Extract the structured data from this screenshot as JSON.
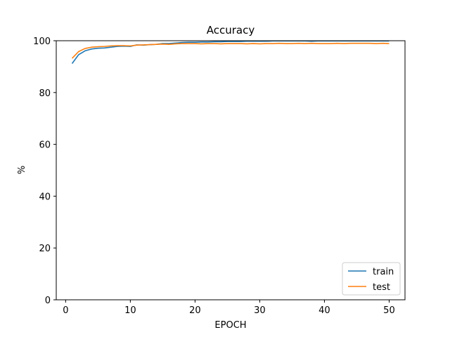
{
  "chart_data": {
    "type": "line",
    "title": "Accuracy",
    "xlabel": "EPOCH",
    "ylabel": "%",
    "xlim": [
      -1.45,
      52.45
    ],
    "ylim": [
      0,
      100
    ],
    "xticks": [
      0,
      10,
      20,
      30,
      40,
      50
    ],
    "yticks": [
      0,
      20,
      40,
      60,
      80,
      100
    ],
    "grid": false,
    "legend_position": "lower-right",
    "x": [
      1,
      2,
      3,
      4,
      5,
      6,
      7,
      8,
      9,
      10,
      11,
      12,
      13,
      14,
      15,
      16,
      17,
      18,
      19,
      20,
      21,
      22,
      23,
      24,
      25,
      26,
      27,
      28,
      29,
      30,
      31,
      32,
      33,
      34,
      35,
      36,
      37,
      38,
      39,
      40,
      41,
      42,
      43,
      44,
      45,
      46,
      47,
      48,
      49,
      50
    ],
    "series": [
      {
        "name": "train",
        "color": "#1f77b4",
        "values": [
          91.2,
          94.6,
          96.1,
          96.8,
          97.1,
          97.2,
          97.5,
          97.8,
          97.9,
          97.8,
          98.4,
          98.3,
          98.5,
          98.6,
          98.9,
          98.9,
          99.1,
          99.3,
          99.4,
          99.4,
          99.5,
          99.5,
          99.6,
          99.6,
          99.7,
          99.7,
          99.7,
          99.8,
          99.8,
          99.8,
          99.8,
          99.9,
          99.9,
          99.9,
          99.9,
          99.9,
          99.9,
          99.8,
          99.9,
          99.9,
          99.9,
          99.9,
          99.9,
          99.9,
          99.9,
          99.9,
          99.9,
          99.9,
          99.9,
          99.9
        ]
      },
      {
        "name": "test",
        "color": "#ff7f0e",
        "values": [
          93.2,
          95.8,
          97.0,
          97.5,
          97.7,
          97.8,
          98.0,
          98.1,
          98.1,
          98.0,
          98.3,
          98.4,
          98.5,
          98.6,
          98.7,
          98.6,
          98.8,
          98.9,
          98.9,
          98.9,
          98.8,
          98.9,
          98.9,
          98.8,
          98.9,
          98.9,
          98.9,
          98.8,
          98.9,
          98.8,
          98.9,
          98.9,
          99.0,
          98.9,
          98.9,
          99.0,
          98.9,
          99.0,
          98.9,
          98.9,
          98.9,
          99.0,
          98.9,
          99.0,
          99.0,
          99.0,
          99.0,
          98.9,
          99.0,
          98.9
        ]
      }
    ]
  }
}
